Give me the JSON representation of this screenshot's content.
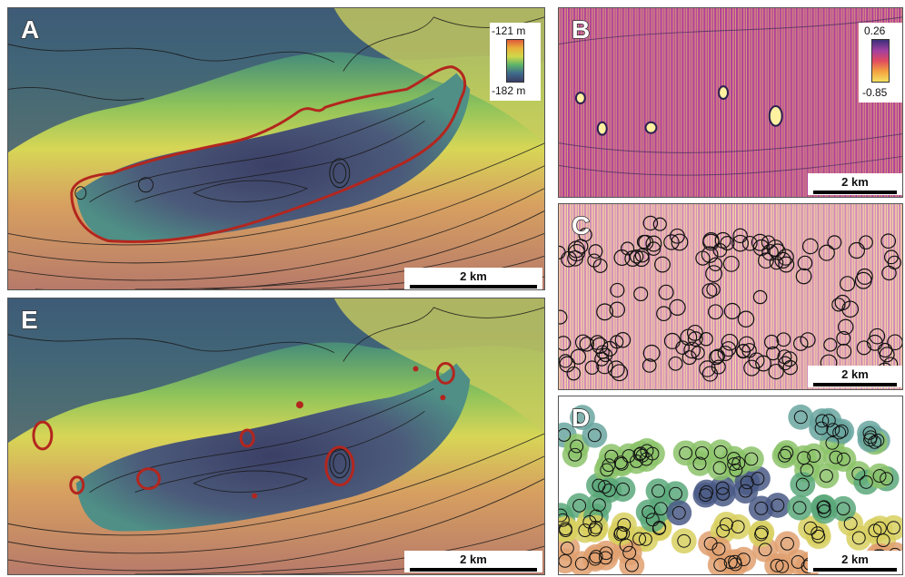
{
  "panels": {
    "A": {
      "letter": "A",
      "scale_label": "2 km",
      "legend": {
        "max": "-121 m",
        "min": "-182 m"
      }
    },
    "B": {
      "letter": "B",
      "scale_label": "2 km",
      "legend": {
        "max": "0.26",
        "min": "-0.85"
      }
    },
    "C": {
      "letter": "C",
      "scale_label": "2 km"
    },
    "D": {
      "letter": "D",
      "scale_label": "2 km"
    },
    "E": {
      "letter": "E",
      "scale_label": "2 km"
    }
  },
  "colors": {
    "outline_red": "#b3261e",
    "contour": "#1a1a1a",
    "bathy_deep": "#3d4a6e",
    "bathy_shallow": "#c98a6a"
  }
}
